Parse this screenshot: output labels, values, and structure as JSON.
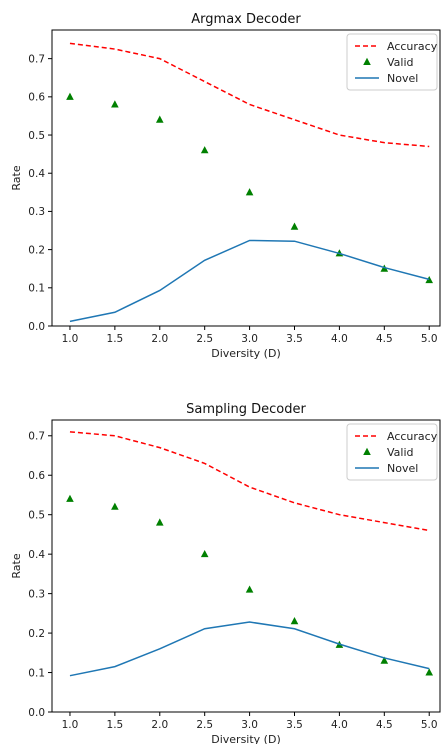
{
  "chart_data": [
    {
      "type": "line",
      "title": "Argmax Decoder",
      "xlabel": "Diversity (D)",
      "ylabel": "Rate",
      "x": [
        1.0,
        1.5,
        2.0,
        2.5,
        3.0,
        3.5,
        4.0,
        4.5,
        5.0
      ],
      "xticks": [
        "1.0",
        "1.5",
        "2.0",
        "2.5",
        "3.0",
        "3.5",
        "4.0",
        "4.5",
        "5.0"
      ],
      "yticks": [
        "0.0",
        "0.1",
        "0.2",
        "0.3",
        "0.4",
        "0.5",
        "0.6",
        "0.7"
      ],
      "xlim": [
        0.8,
        5.12
      ],
      "ylim": [
        0.0,
        0.775
      ],
      "grid": false,
      "legend_position": "top-right",
      "series": [
        {
          "name": "Accuracy",
          "style": "dashed-line",
          "color": "#ff0000",
          "values": [
            0.74,
            0.725,
            0.7,
            0.64,
            0.58,
            0.54,
            0.5,
            0.48,
            0.47
          ]
        },
        {
          "name": "Valid",
          "style": "triangle-marker",
          "color": "#008000",
          "values": [
            0.6,
            0.58,
            0.54,
            0.46,
            0.35,
            0.26,
            0.19,
            0.15,
            0.12
          ]
        },
        {
          "name": "Novel",
          "style": "solid-line",
          "color": "#1f77b4",
          "values": [
            0.012,
            0.036,
            0.093,
            0.172,
            0.224,
            0.222,
            0.19,
            0.153,
            0.122
          ]
        }
      ]
    },
    {
      "type": "line",
      "title": "Sampling Decoder",
      "xlabel": "Diversity (D)",
      "ylabel": "Rate",
      "x": [
        1.0,
        1.5,
        2.0,
        2.5,
        3.0,
        3.5,
        4.0,
        4.5,
        5.0
      ],
      "xticks": [
        "1.0",
        "1.5",
        "2.0",
        "2.5",
        "3.0",
        "3.5",
        "4.0",
        "4.5",
        "5.0"
      ],
      "yticks": [
        "0.0",
        "0.1",
        "0.2",
        "0.3",
        "0.4",
        "0.5",
        "0.6",
        "0.7"
      ],
      "xlim": [
        0.8,
        5.12
      ],
      "ylim": [
        0.0,
        0.74
      ],
      "grid": false,
      "legend_position": "top-right",
      "series": [
        {
          "name": "Accuracy",
          "style": "dashed-line",
          "color": "#ff0000",
          "values": [
            0.71,
            0.7,
            0.67,
            0.63,
            0.57,
            0.53,
            0.5,
            0.48,
            0.46
          ]
        },
        {
          "name": "Valid",
          "style": "triangle-marker",
          "color": "#008000",
          "values": [
            0.54,
            0.52,
            0.48,
            0.4,
            0.31,
            0.23,
            0.17,
            0.13,
            0.1
          ]
        },
        {
          "name": "Novel",
          "style": "solid-line",
          "color": "#1f77b4",
          "values": [
            0.092,
            0.115,
            0.16,
            0.211,
            0.228,
            0.211,
            0.172,
            0.137,
            0.11
          ]
        }
      ]
    }
  ]
}
